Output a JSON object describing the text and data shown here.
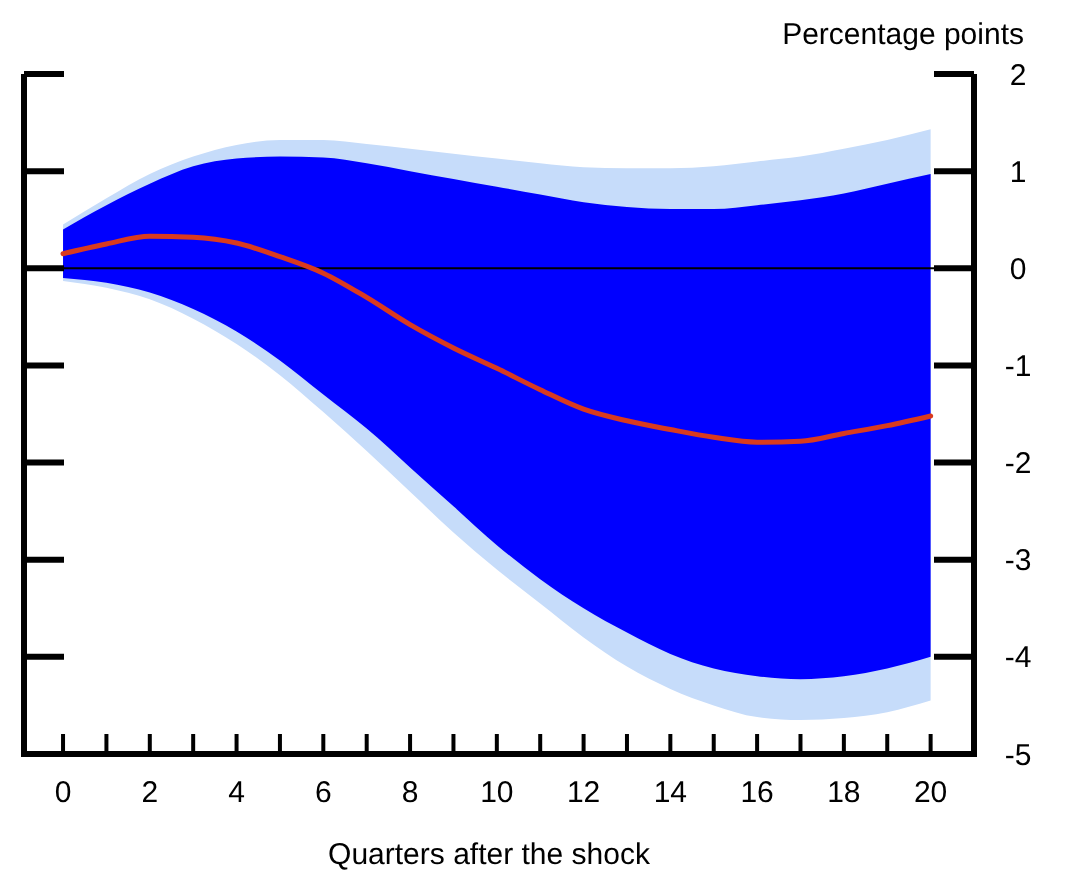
{
  "chart_data": {
    "type": "line",
    "xlabel": "Quarters after the shock",
    "ylabel": "Percentage points",
    "x": [
      0,
      1,
      2,
      3,
      4,
      5,
      6,
      7,
      8,
      9,
      10,
      11,
      12,
      13,
      14,
      15,
      16,
      17,
      18,
      19,
      20
    ],
    "xlim": [
      -0.9,
      21
    ],
    "xticks": [
      0,
      {
        "value": 1,
        "label": null
      },
      2,
      {
        "value": 3,
        "label": null
      },
      4,
      {
        "value": 5,
        "label": null
      },
      6,
      {
        "value": 7,
        "label": null
      },
      8,
      {
        "value": 9,
        "label": null
      },
      10,
      {
        "value": 11,
        "label": null
      },
      12,
      {
        "value": 13,
        "label": null
      },
      14,
      {
        "value": 15,
        "label": null
      },
      16,
      {
        "value": 17,
        "label": null
      },
      18,
      {
        "value": 19,
        "label": null
      },
      20
    ],
    "ylim": [
      -5,
      2
    ],
    "yticks": [
      -5,
      -4,
      -3,
      -2,
      -1,
      0,
      1,
      2
    ],
    "grid": false,
    "legend": false,
    "marker": "none",
    "line_style": "solid",
    "ref_lines": [
      {
        "axis": "y",
        "value": 0,
        "color": "#000000"
      }
    ],
    "series": [
      {
        "color": "#c6dcfa",
        "values": [
          null,
          null,
          null,
          null,
          null,
          null,
          null,
          null,
          null,
          null,
          null,
          null,
          null,
          null,
          null,
          null,
          null,
          null,
          null,
          null,
          null
        ],
        "upper": [
          0.45,
          0.72,
          0.97,
          1.15,
          1.27,
          1.32,
          1.32,
          1.28,
          1.23,
          1.18,
          1.13,
          1.08,
          1.04,
          1.03,
          1.03,
          1.05,
          1.1,
          1.15,
          1.23,
          1.32,
          1.43
        ],
        "lower": [
          -0.13,
          -0.2,
          -0.32,
          -0.52,
          -0.78,
          -1.1,
          -1.48,
          -1.88,
          -2.3,
          -2.72,
          -3.1,
          -3.45,
          -3.8,
          -4.1,
          -4.33,
          -4.5,
          -4.62,
          -4.65,
          -4.63,
          -4.57,
          -4.45
        ]
      },
      {
        "color": "#0000ff",
        "values": [
          null,
          null,
          null,
          null,
          null,
          null,
          null,
          null,
          null,
          null,
          null,
          null,
          null,
          null,
          null,
          null,
          null,
          null,
          null,
          null,
          null
        ],
        "upper": [
          0.4,
          0.65,
          0.87,
          1.05,
          1.13,
          1.15,
          1.14,
          1.08,
          1.0,
          0.92,
          0.84,
          0.76,
          0.68,
          0.63,
          0.61,
          0.61,
          0.65,
          0.7,
          0.77,
          0.87,
          0.97
        ],
        "lower": [
          -0.1,
          -0.15,
          -0.25,
          -0.42,
          -0.65,
          -0.95,
          -1.3,
          -1.65,
          -2.05,
          -2.45,
          -2.85,
          -3.2,
          -3.5,
          -3.75,
          -3.97,
          -4.12,
          -4.2,
          -4.23,
          -4.2,
          -4.12,
          -4.0
        ]
      },
      {
        "color": "#d93a1e",
        "values": [
          0.15,
          0.25,
          0.33,
          0.32,
          0.26,
          0.12,
          -0.05,
          -0.3,
          -0.58,
          -0.82,
          -1.03,
          -1.25,
          -1.45,
          -1.57,
          -1.66,
          -1.74,
          -1.79,
          -1.78,
          -1.7,
          -1.62,
          -1.52
        ]
      }
    ]
  }
}
